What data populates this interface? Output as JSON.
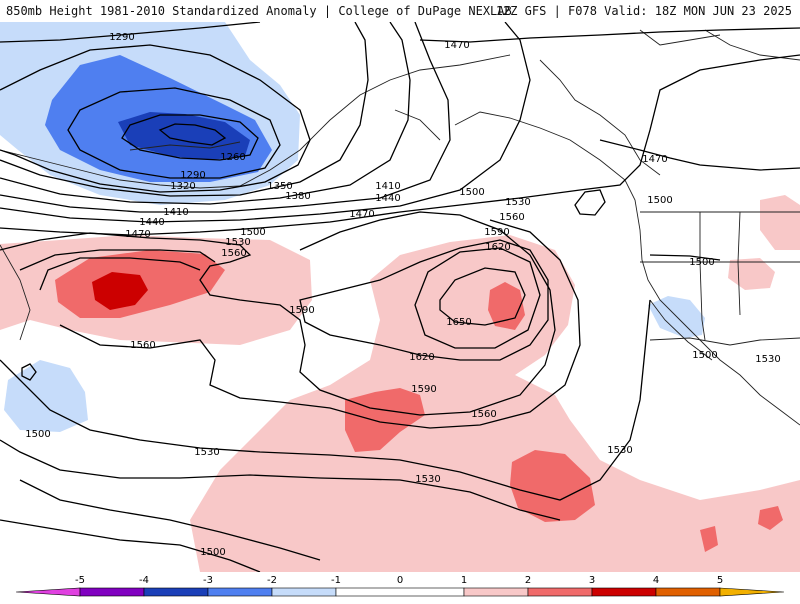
{
  "header": {
    "left_title": "850mb Height 1981-2010 Standardized Anomaly | College of DuPage NEXLAB",
    "right_title": "12Z GFS | F078 Valid: 18Z MON JUN 23 2025"
  },
  "contour_labels": [
    {
      "text": "1290"
    },
    {
      "text": "1470"
    },
    {
      "text": "1470"
    },
    {
      "text": "1260"
    },
    {
      "text": "1290"
    },
    {
      "text": "1320"
    },
    {
      "text": "1350"
    },
    {
      "text": "1380"
    },
    {
      "text": "1410"
    },
    {
      "text": "1440"
    },
    {
      "text": "1410"
    },
    {
      "text": "1440"
    },
    {
      "text": "1470"
    },
    {
      "text": "1500"
    },
    {
      "text": "1530"
    },
    {
      "text": "1560"
    },
    {
      "text": "1500"
    },
    {
      "text": "1530"
    },
    {
      "text": "1560"
    },
    {
      "text": "1590"
    },
    {
      "text": "1620"
    },
    {
      "text": "1650"
    },
    {
      "text": "1560"
    },
    {
      "text": "1590"
    },
    {
      "text": "1620"
    },
    {
      "text": "1590"
    },
    {
      "text": "1560"
    },
    {
      "text": "1500"
    },
    {
      "text": "1530"
    },
    {
      "text": "1530"
    },
    {
      "text": "1530"
    },
    {
      "text": "1500"
    },
    {
      "text": "1500"
    },
    {
      "text": "1500"
    },
    {
      "text": "1530"
    },
    {
      "text": "1500"
    },
    {
      "text": "1470"
    }
  ],
  "colorbar": {
    "ticks": [
      "-5",
      "-4",
      "-3",
      "-2",
      "-1",
      "0",
      "1",
      "2",
      "3",
      "4",
      "5"
    ],
    "colors": {
      "neg5": "#e040e0",
      "neg4": "#8000c0",
      "neg3": "#1a3fb8",
      "neg2": "#4f7ff0",
      "neg1": "#c6dcfa",
      "pos1": "#f8c8c8",
      "pos2": "#f06a6a",
      "pos3": "#cc0000",
      "pos4": "#e06000",
      "pos5": "#f2b000"
    }
  }
}
